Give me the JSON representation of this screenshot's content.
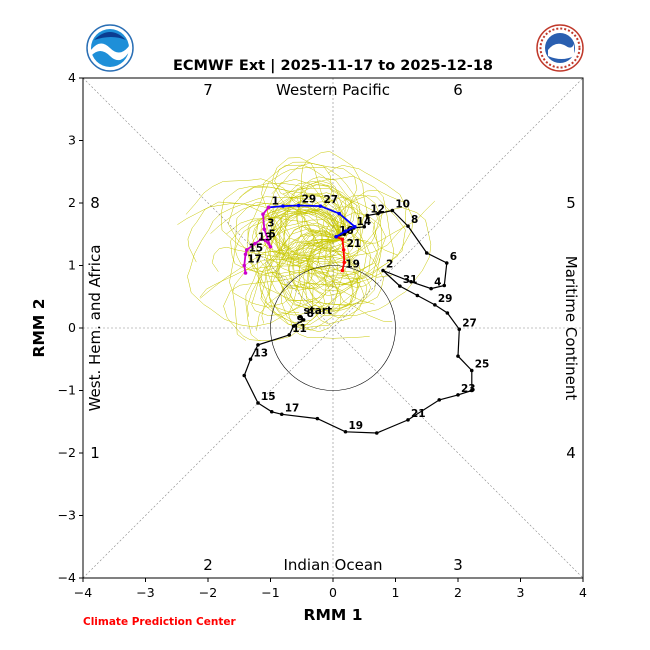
{
  "chart_data": {
    "type": "line",
    "title": "ECMWF Ext | 2025-11-17 to 2025-12-18",
    "xlabel": "RMM 1",
    "ylabel": "RMM 2",
    "xlim": [
      -4,
      4
    ],
    "ylim": [
      -4,
      4
    ],
    "xticks": [
      "−4",
      "−3",
      "−2",
      "−1",
      "0",
      "1",
      "2",
      "3",
      "4"
    ],
    "yticks": [
      "−4",
      "−3",
      "−2",
      "−1",
      "0",
      "1",
      "2",
      "3",
      "4"
    ],
    "regions": {
      "top": "Western Pacific",
      "bottom": "Indian Ocean",
      "left": "West. Hem. and Africa",
      "right": "Maritime Continent"
    },
    "phases": {
      "top_left": "7",
      "top_right": "6",
      "left_upper": "8",
      "left_lower": "1",
      "right_upper": "5",
      "right_lower": "4",
      "bottom_left": "2",
      "bottom_right": "3"
    },
    "circle_radius": 1,
    "start_label": "start",
    "credit": "Climate Prediction Center",
    "colors": {
      "observed": "#000000",
      "ensemble": "#c8c800",
      "week1": "#ff0000",
      "week2": "#0000ff",
      "week3": "#cc00cc"
    },
    "series": [
      {
        "color": "#000000",
        "points": [
          {
            "x": -0.52,
            "y": 0.18,
            "label": "start"
          },
          {
            "x": -0.47,
            "y": 0.13,
            "label": "8"
          },
          {
            "x": -0.63,
            "y": 0.03,
            "label": "9"
          },
          {
            "x": -0.7,
            "y": -0.11,
            "label": "11"
          },
          {
            "x": -1.2,
            "y": -0.27
          },
          {
            "x": -1.32,
            "y": -0.5,
            "label": "13"
          },
          {
            "x": -1.42,
            "y": -0.76
          },
          {
            "x": -1.2,
            "y": -1.2,
            "label": "15"
          },
          {
            "x": -0.98,
            "y": -1.34
          },
          {
            "x": -0.82,
            "y": -1.38,
            "label": "17"
          },
          {
            "x": -0.25,
            "y": -1.45
          },
          {
            "x": 0.2,
            "y": -1.66,
            "label": "19"
          },
          {
            "x": 0.7,
            "y": -1.68
          },
          {
            "x": 1.2,
            "y": -1.47,
            "label": "21"
          },
          {
            "x": 1.7,
            "y": -1.15
          },
          {
            "x": 2.0,
            "y": -1.07,
            "label": "23"
          },
          {
            "x": 2.22,
            "y": -1.0
          },
          {
            "x": 2.22,
            "y": -0.68,
            "label": "25"
          },
          {
            "x": 2.0,
            "y": -0.45
          },
          {
            "x": 2.02,
            "y": -0.02,
            "label": "27"
          },
          {
            "x": 1.83,
            "y": 0.24
          },
          {
            "x": 1.63,
            "y": 0.37,
            "label": "29"
          },
          {
            "x": 1.35,
            "y": 0.52
          },
          {
            "x": 1.07,
            "y": 0.67,
            "label": "31"
          },
          {
            "x": 0.8,
            "y": 0.92,
            "label": "2"
          },
          {
            "x": 1.25,
            "y": 0.74
          },
          {
            "x": 1.57,
            "y": 0.63,
            "label": "4"
          },
          {
            "x": 1.78,
            "y": 0.68
          },
          {
            "x": 1.82,
            "y": 1.04,
            "label": "6"
          },
          {
            "x": 1.5,
            "y": 1.2
          },
          {
            "x": 1.2,
            "y": 1.63,
            "label": "8"
          },
          {
            "x": 0.95,
            "y": 1.88,
            "label": "10"
          },
          {
            "x": 0.72,
            "y": 1.83
          },
          {
            "x": 0.55,
            "y": 1.8,
            "label": "12"
          },
          {
            "x": 0.5,
            "y": 1.62
          },
          {
            "x": 0.33,
            "y": 1.6,
            "label": "14"
          },
          {
            "x": 0.18,
            "y": 1.5
          },
          {
            "x": 0.05,
            "y": 1.46,
            "label": "16"
          }
        ]
      },
      {
        "color": "#ff0000",
        "points": [
          {
            "x": 0.05,
            "y": 1.46
          },
          {
            "x": 0.15,
            "y": 1.42
          },
          {
            "x": 0.17,
            "y": 1.25,
            "label": "21"
          },
          {
            "x": 0.18,
            "y": 1.05
          },
          {
            "x": 0.15,
            "y": 0.92,
            "label": "19"
          }
        ]
      },
      {
        "color": "#0000ff",
        "points": [
          {
            "x": 0.05,
            "y": 1.46
          },
          {
            "x": 0.2,
            "y": 1.55
          },
          {
            "x": 0.35,
            "y": 1.62
          },
          {
            "x": 0.1,
            "y": 1.83
          },
          {
            "x": -0.2,
            "y": 1.95,
            "label": "27"
          },
          {
            "x": -0.55,
            "y": 1.96,
            "label": "29"
          },
          {
            "x": -0.8,
            "y": 1.95
          },
          {
            "x": -1.03,
            "y": 1.93,
            "label": "1"
          }
        ]
      },
      {
        "color": "#cc00cc",
        "points": [
          {
            "x": -1.03,
            "y": 1.93
          },
          {
            "x": -1.12,
            "y": 1.82
          },
          {
            "x": -1.1,
            "y": 1.58,
            "label": "3"
          },
          {
            "x": -1.0,
            "y": 1.3
          },
          {
            "x": -1.08,
            "y": 1.4,
            "label": "5"
          },
          {
            "x": -1.15,
            "y": 1.42
          },
          {
            "x": -1.25,
            "y": 1.35,
            "label": "13"
          },
          {
            "x": -1.38,
            "y": 1.25
          },
          {
            "x": -1.4,
            "y": 1.18,
            "label": "15"
          },
          {
            "x": -1.42,
            "y": 1.0,
            "label": "17"
          },
          {
            "x": -1.4,
            "y": 0.88
          }
        ]
      }
    ]
  }
}
